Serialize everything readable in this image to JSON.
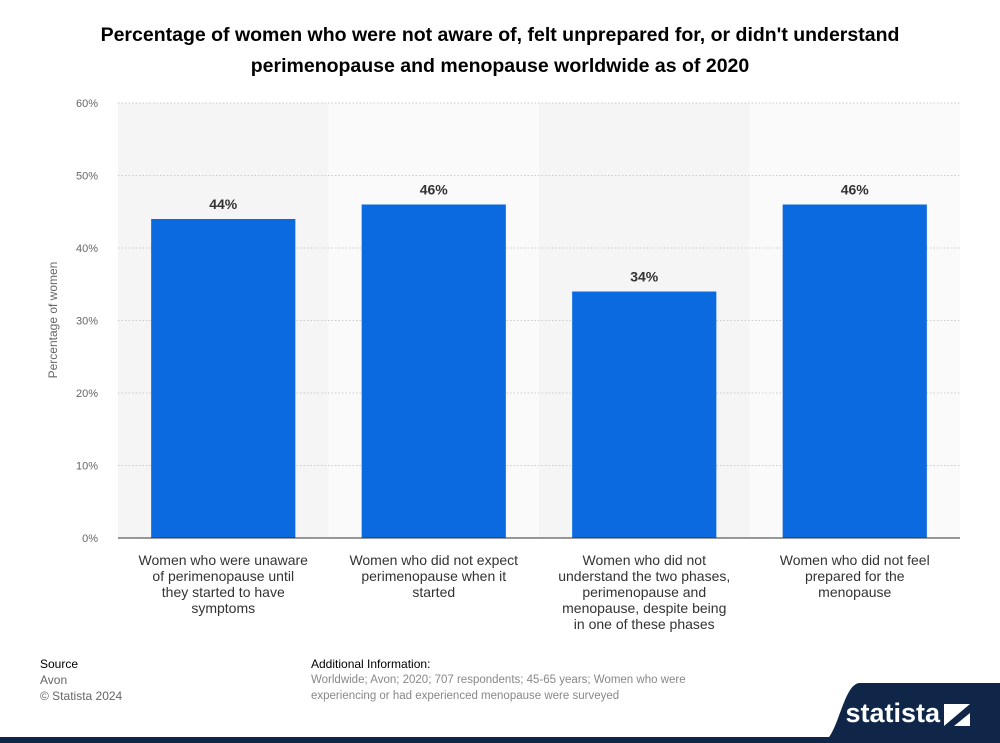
{
  "title": "Percentage of women who were not aware of, felt unprepared for, or didn't understand perimenopause and menopause worldwide as of 2020",
  "chart_data": {
    "type": "bar",
    "categories": [
      [
        "Women who were unaware",
        "of perimenopause until",
        "they started to have",
        "symptoms"
      ],
      [
        "Women who did not expect",
        "perimenopause when it",
        "started"
      ],
      [
        "Women who did not",
        "understand the two phases,",
        "perimenopause and",
        "menopause, despite being",
        "in one of these phases"
      ],
      [
        "Women who did not feel",
        "prepared for the",
        "menopause"
      ]
    ],
    "values": [
      44,
      46,
      34,
      46
    ],
    "value_labels": [
      "44%",
      "46%",
      "34%",
      "46%"
    ],
    "ylabel": "Percentage of women",
    "ylim": [
      0,
      60
    ],
    "yticks": [
      0,
      10,
      20,
      30,
      40,
      50,
      60
    ],
    "ytick_labels": [
      "0%",
      "10%",
      "20%",
      "30%",
      "40%",
      "50%",
      "60%"
    ],
    "bar_color": "#0b6ae0",
    "grid": true
  },
  "footer": {
    "source_heading": "Source",
    "source_lines": [
      "Avon",
      "© Statista 2024"
    ],
    "info_heading": "Additional Information:",
    "info_text": "Worldwide; Avon; 2020; 707 respondents; 45-65 years; Women who were experiencing or had experienced menopause were surveyed"
  },
  "brand": {
    "name": "statista",
    "color": "#0f2648",
    "logo_icon": "statista-logo-icon"
  }
}
